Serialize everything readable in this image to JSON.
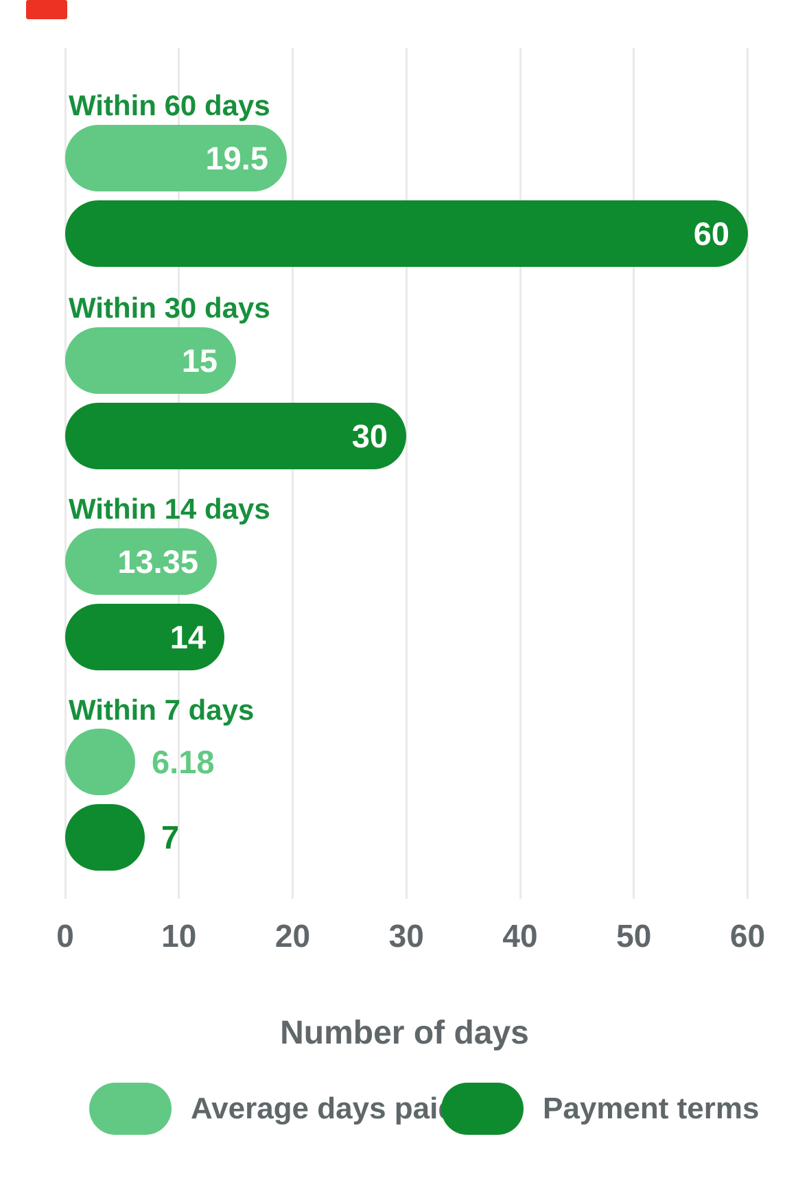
{
  "colors": {
    "series_light": "#61c983",
    "series_dark": "#0e8b2e",
    "category_label": "#17903c",
    "axis_text": "#60676a",
    "gridline": "#e9e9e9",
    "value_text_inside": "#ffffff",
    "recording_indicator": "#ec3323"
  },
  "chart_data": {
    "type": "bar",
    "orientation": "horizontal",
    "categories": [
      "Within 60 days",
      "Within 30 days",
      "Within 14 days",
      "Within 7 days"
    ],
    "series": [
      {
        "name": "Average days paid",
        "color": "#61c983",
        "values": [
          19.5,
          15,
          13.35,
          6.18
        ]
      },
      {
        "name": "Payment terms",
        "color": "#0e8b2e",
        "values": [
          60,
          30,
          14,
          7
        ]
      }
    ],
    "xlabel": "Number of days",
    "xlim": [
      0,
      60
    ],
    "xticks": [
      0,
      10,
      20,
      30,
      40,
      50,
      60
    ],
    "grid": "vertical",
    "legend_position": "bottom",
    "value_labels": "end-of-bar"
  }
}
